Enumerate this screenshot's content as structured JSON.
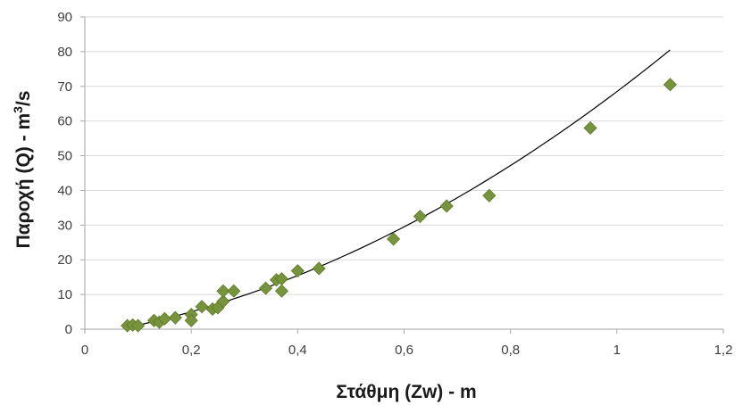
{
  "chart_data": {
    "type": "scatter",
    "title": "",
    "xlabel": "Στάθμη (Zw) - m",
    "ylabel": {
      "prefix": "Παροχή (Q) - m",
      "sup": "3",
      "suffix": "/s"
    },
    "xlim": [
      0,
      1.2
    ],
    "ylim": [
      0,
      90
    ],
    "xticks": [
      0,
      0.2,
      0.4,
      0.6,
      0.8,
      1,
      1.2
    ],
    "xtick_labels": [
      "0",
      "0,2",
      "0,4",
      "0,6",
      "0,8",
      "1",
      "1,2"
    ],
    "yticks": [
      0,
      10,
      20,
      30,
      40,
      50,
      60,
      70,
      80,
      90
    ],
    "ytick_labels": [
      "0",
      "10",
      "20",
      "30",
      "40",
      "50",
      "60",
      "70",
      "80",
      "90"
    ],
    "grid": "horizontal",
    "legend": "none",
    "marker": "diamond",
    "colors": {
      "marker": "#77933c",
      "marker_stroke": "#5e7a2a",
      "trendline": "#000000",
      "grid": "#d9d9d9",
      "axis": "#a6a6a6"
    },
    "series": [
      {
        "values": [
          [
            0.08,
            1.0
          ],
          [
            0.09,
            1.2
          ],
          [
            0.1,
            1.0
          ],
          [
            0.13,
            2.5
          ],
          [
            0.14,
            2.0
          ],
          [
            0.15,
            3.0
          ],
          [
            0.17,
            3.3
          ],
          [
            0.2,
            4.2
          ],
          [
            0.2,
            2.5
          ],
          [
            0.22,
            6.5
          ],
          [
            0.24,
            5.8
          ],
          [
            0.25,
            6.2
          ],
          [
            0.26,
            8.0
          ],
          [
            0.26,
            11.0
          ],
          [
            0.28,
            11.0
          ],
          [
            0.34,
            11.8
          ],
          [
            0.36,
            14.2
          ],
          [
            0.37,
            14.5
          ],
          [
            0.37,
            11.0
          ],
          [
            0.4,
            16.8
          ],
          [
            0.44,
            17.5
          ],
          [
            0.58,
            26.0
          ],
          [
            0.63,
            32.5
          ],
          [
            0.68,
            35.5
          ],
          [
            0.76,
            38.5
          ],
          [
            0.95,
            58.0
          ],
          [
            1.1,
            70.5
          ]
        ]
      }
    ],
    "trendline": {
      "type": "polynomial",
      "x_range": [
        0.08,
        1.1
      ],
      "y_start": 0.5,
      "y_end": 80.5
    }
  }
}
